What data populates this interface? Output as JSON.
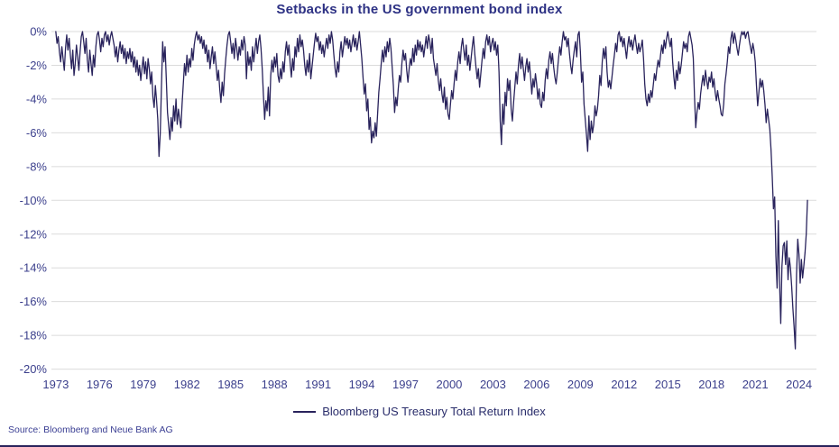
{
  "source": "Source: Bloomberg and Neue Bank AG",
  "colors": {
    "line": "#29235C",
    "title": "#2D3184",
    "tick_label": "#3B3F8C",
    "legend_text": "#2A2D6B",
    "source_text": "#3C4094",
    "gridline": "#DBDBDB",
    "footer_rule": "#29235C"
  },
  "chart_data": {
    "type": "line",
    "title": "Setbacks in the US government bond index",
    "xlabel": "",
    "ylabel": "",
    "grid": true,
    "legend_position": "bottom",
    "ylim": [
      -20,
      0
    ],
    "xlim": [
      1972.7,
      2025.2
    ],
    "y_tick_values": [
      0,
      -2,
      -4,
      -6,
      -8,
      -10,
      -12,
      -14,
      -16,
      -18,
      -20
    ],
    "y_tick_labels": [
      "0%",
      "-2%",
      "-4%",
      "-6%",
      "-8%",
      "-10%",
      "-12%",
      "-14%",
      "-16%",
      "-18%",
      "-20%"
    ],
    "x_tick_values": [
      1973,
      1976,
      1979,
      1982,
      1985,
      1988,
      1991,
      1994,
      1997,
      2000,
      2003,
      2006,
      2009,
      2012,
      2015,
      2018,
      2021,
      2024
    ],
    "series": [
      {
        "name": "Bloomberg US Treasury Total Return Index",
        "unit": "%",
        "start_year": 1973,
        "points_per_year": 12,
        "values_by_year": [
          [
            0,
            -0.7,
            -0.3,
            -1.2,
            -1.8,
            -0.9,
            -1.6,
            -2.3,
            -1.0,
            -0.2,
            -1.1,
            -0.4
          ],
          [
            -1.4,
            -2.2,
            -1.1,
            -2.6,
            -1.9,
            -0.8,
            -1.5,
            -2.3,
            -1.2,
            -0.3,
            0,
            -0.6
          ],
          [
            -1.3,
            -0.4,
            -1.7,
            -2.4,
            -1.1,
            -1.9,
            -2.6,
            -1.4,
            -2.1,
            -0.9,
            -0.2,
            0
          ],
          [
            -0.5,
            -1.2,
            -0.4,
            -0.9,
            -0.2,
            0,
            -0.6,
            -0.2,
            -0.8,
            -0.3,
            0,
            -0.4
          ],
          [
            -0.8,
            -1.5,
            -0.9,
            -1.8,
            -1.1,
            -0.6,
            -1.3,
            -0.8,
            -1.6,
            -1.0,
            -1.9,
            -1.2
          ],
          [
            -1.6,
            -1.0,
            -1.8,
            -1.2,
            -2.1,
            -1.5,
            -2.4,
            -1.7,
            -2.6,
            -2.0,
            -2.9,
            -2.2
          ],
          [
            -1.5,
            -2.5,
            -1.8,
            -2.8,
            -1.6,
            -2.2,
            -3.1,
            -2.4,
            -3.9,
            -4.5,
            -3.2,
            -4.1
          ],
          [
            -5.2,
            -7.4,
            -6.1,
            -3.3,
            -0.6,
            -1.8,
            -0.9,
            -2.8,
            -4.8,
            -5.6,
            -6.4,
            -5.1
          ],
          [
            -5.9,
            -4.4,
            -5.3,
            -4.0,
            -5.5,
            -4.6,
            -5.2,
            -5.7,
            -4.3,
            -3.1,
            -1.9,
            -2.6
          ],
          [
            -1.4,
            -2.4,
            -1.6,
            -2.1,
            -1.0,
            -1.7,
            -0.8,
            -0.3,
            0,
            -0.5,
            -0.2,
            -0.7
          ],
          [
            -0.3,
            -1.0,
            -0.5,
            -1.3,
            -0.8,
            -1.8,
            -1.1,
            -2.2,
            -1.5,
            -0.9,
            -1.9,
            -1.2
          ],
          [
            -2.0,
            -2.9,
            -2.3,
            -3.4,
            -4.2,
            -3.0,
            -3.8,
            -2.5,
            -1.6,
            -0.8,
            -0.2,
            0
          ],
          [
            -0.6,
            -1.3,
            -0.7,
            -1.6,
            -0.4,
            -1.0,
            -1.7,
            -0.9,
            -1.4,
            -0.5,
            -1.1,
            -0.3
          ],
          [
            -0.8,
            -2.8,
            -1.2,
            -2.0,
            -1.5,
            -2.3,
            -0.9,
            -1.8,
            -1.1,
            -0.4,
            -1.3,
            -0.6
          ],
          [
            -0.2,
            -1.0,
            -2.2,
            -3.8,
            -5.2,
            -4.1,
            -4.7,
            -3.3,
            -5.0,
            -2.6,
            -1.7,
            -2.4
          ],
          [
            -1.5,
            -2.1,
            -1.3,
            -2.6,
            -3.0,
            -2.2,
            -2.8,
            -1.8,
            -2.4,
            -1.2,
            -0.6,
            -1.4
          ],
          [
            -0.8,
            -1.9,
            -2.7,
            -1.6,
            -2.3,
            -0.9,
            -1.5,
            -0.4,
            -1.2,
            -0.2,
            -0.9,
            -0.5
          ],
          [
            -1.1,
            -2.0,
            -2.6,
            -1.7,
            -2.4,
            -1.3,
            -2.8,
            -2.1,
            -1.4,
            -0.7,
            -0.1,
            -0.6
          ],
          [
            -0.3,
            -1.1,
            -0.6,
            -1.3,
            -0.8,
            -1.5,
            -0.9,
            -0.4,
            -1.0,
            -0.2,
            -0.7,
            0
          ],
          [
            -0.5,
            -1.4,
            -2.2,
            -2.7,
            -1.8,
            -2.4,
            -1.2,
            -0.6,
            -1.5,
            -0.9,
            -0.3,
            -0.8
          ],
          [
            -0.4,
            -1.0,
            -0.5,
            -1.2,
            -0.7,
            -0.2,
            -0.9,
            -0.4,
            -1.1,
            -0.6,
            0,
            -0.8
          ],
          [
            -1.6,
            -2.7,
            -3.7,
            -3.1,
            -4.7,
            -4.0,
            -5.8,
            -5.1,
            -6.6,
            -5.9,
            -6.3,
            -5.4
          ],
          [
            -6.2,
            -4.9,
            -3.6,
            -2.8,
            -1.9,
            -1.1,
            -1.8,
            -0.9,
            -1.5,
            -0.6,
            -1.2,
            -0.4
          ],
          [
            -1.0,
            -2.1,
            -3.2,
            -4.8,
            -3.9,
            -4.4,
            -3.4,
            -2.6,
            -3.0,
            -1.9,
            -1.1,
            -1.7
          ],
          [
            -1.3,
            -2.3,
            -3.0,
            -2.2,
            -1.6,
            -2.0,
            -1.0,
            -1.8,
            -0.8,
            -1.4,
            -0.5,
            -1.1
          ],
          [
            -0.6,
            -1.2,
            -0.8,
            -1.5,
            -0.9,
            -0.3,
            -1.0,
            -0.2,
            -0.6,
            -1.3,
            -0.4,
            -1.6
          ],
          [
            -2.1,
            -2.6,
            -1.9,
            -2.9,
            -3.5,
            -2.8,
            -3.7,
            -4.2,
            -3.3,
            -4.6,
            -3.9,
            -4.9
          ],
          [
            -5.2,
            -4.3,
            -3.5,
            -4.0,
            -3.1,
            -2.3,
            -2.9,
            -1.8,
            -1.2,
            -1.9,
            -0.9,
            -0.4
          ],
          [
            -1.1,
            -1.7,
            -0.8,
            -2.0,
            -1.4,
            -2.3,
            -1.6,
            -0.9,
            -0.3,
            -1.3,
            -2.1,
            -2.8
          ],
          [
            -2.2,
            -3.3,
            -2.5,
            -1.7,
            -1.0,
            -1.6,
            -0.6,
            -0.2,
            -0.8,
            -0.3,
            -1.2,
            -0.7
          ],
          [
            -0.4,
            -1.1,
            -0.6,
            -1.4,
            -0.8,
            -2.4,
            -5.3,
            -6.7,
            -4.3,
            -5.5,
            -3.6,
            -4.4
          ],
          [
            -2.8,
            -3.5,
            -2.9,
            -4.6,
            -5.3,
            -4.2,
            -3.3,
            -2.4,
            -3.1,
            -2.0,
            -1.3,
            -2.2
          ],
          [
            -1.5,
            -2.2,
            -2.9,
            -2.1,
            -1.6,
            -2.4,
            -1.8,
            -2.7,
            -3.7,
            -2.8,
            -3.3,
            -2.5
          ],
          [
            -3.1,
            -4.0,
            -3.4,
            -4.3,
            -4.5,
            -3.6,
            -4.1,
            -2.9,
            -2.2,
            -2.8,
            -1.7,
            -1.2
          ],
          [
            -1.9,
            -1.3,
            -2.1,
            -2.7,
            -3.1,
            -2.4,
            -1.6,
            -0.9,
            -1.4,
            -0.6,
            0,
            -0.5
          ],
          [
            -0.3,
            -0.9,
            -0.4,
            -1.3,
            -2.0,
            -2.5,
            -1.7,
            -1.1,
            -0.6,
            -1.5,
            -0.2,
            0
          ],
          [
            -1.2,
            -3.0,
            -2.4,
            -4.3,
            -5.2,
            -6.1,
            -7.1,
            -5.0,
            -6.4,
            -5.3,
            -6.0,
            -5.5
          ],
          [
            -4.4,
            -5.0,
            -4.6,
            -3.8,
            -2.6,
            -3.2,
            -1.8,
            -1.0,
            -1.6,
            -0.9,
            -2.4,
            -3.3
          ],
          [
            -2.9,
            -3.4,
            -2.7,
            -2.0,
            -1.4,
            -0.7,
            -1.2,
            -0.2,
            0,
            -0.6,
            -0.3,
            -0.9
          ],
          [
            -0.4,
            -1.0,
            -1.6,
            -0.8,
            -0.3,
            -0.9,
            -0.5,
            -1.1,
            -0.6,
            -0.2,
            -0.8,
            -1.3
          ],
          [
            -0.7,
            -1.2,
            -0.9,
            -0.5,
            -1.6,
            -3.1,
            -4.0,
            -4.4,
            -3.7,
            -4.2,
            -3.5,
            -3.9
          ],
          [
            -3.2,
            -2.5,
            -2.9,
            -2.2,
            -1.7,
            -2.1,
            -1.4,
            -0.8,
            -1.3,
            -0.5,
            -1.0,
            -0.4
          ],
          [
            0,
            -0.5,
            -0.9,
            -0.4,
            -1.8,
            -2.7,
            -3.4,
            -2.3,
            -2.9,
            -1.8,
            -2.5,
            -2.0
          ],
          [
            -1.3,
            -0.6,
            -1.0,
            -0.7,
            -1.2,
            -0.3,
            0,
            -0.4,
            -0.8,
            -1.6,
            -3.9,
            -5.7
          ],
          [
            -4.8,
            -4.2,
            -4.6,
            -3.7,
            -3.1,
            -2.6,
            -3.2,
            -2.3,
            -2.9,
            -3.4,
            -2.7,
            -3.0
          ],
          [
            -2.4,
            -3.3,
            -2.8,
            -3.6,
            -4.1,
            -3.5,
            -4.0,
            -4.4,
            -4.9,
            -5.0,
            -4.3,
            -3.1
          ],
          [
            -2.5,
            -1.8,
            -0.9,
            -1.3,
            -0.4,
            0,
            -0.7,
            -0.1,
            -0.5,
            -1.0,
            -1.4,
            -0.8
          ],
          [
            -0.3,
            0,
            -0.2,
            0,
            -0.4,
            -0.1,
            0,
            -0.5,
            -0.9,
            -1.3,
            -0.7,
            -1.1
          ],
          [
            -1.8,
            -3.2,
            -4.4,
            -3.6,
            -2.8,
            -3.3,
            -2.9,
            -3.5,
            -4.3,
            -5.4,
            -4.6,
            -5.2
          ],
          [
            -5.8,
            -7.0,
            -8.6,
            -10.5,
            -9.8,
            -13.3,
            -15.2,
            -11.2,
            -14.8,
            -17.3,
            -13.9,
            -12.7
          ],
          [
            -12.5,
            -13.8,
            -12.4,
            -14.7,
            -13.4,
            -14.0,
            -15.1,
            -16.4,
            -17.5,
            -18.8,
            -14.4,
            -12.3
          ],
          [
            -13.2,
            -14.9,
            -13.5,
            -14.6,
            -13.9,
            -13.1,
            -12.0,
            -10.0
          ]
        ]
      }
    ]
  }
}
